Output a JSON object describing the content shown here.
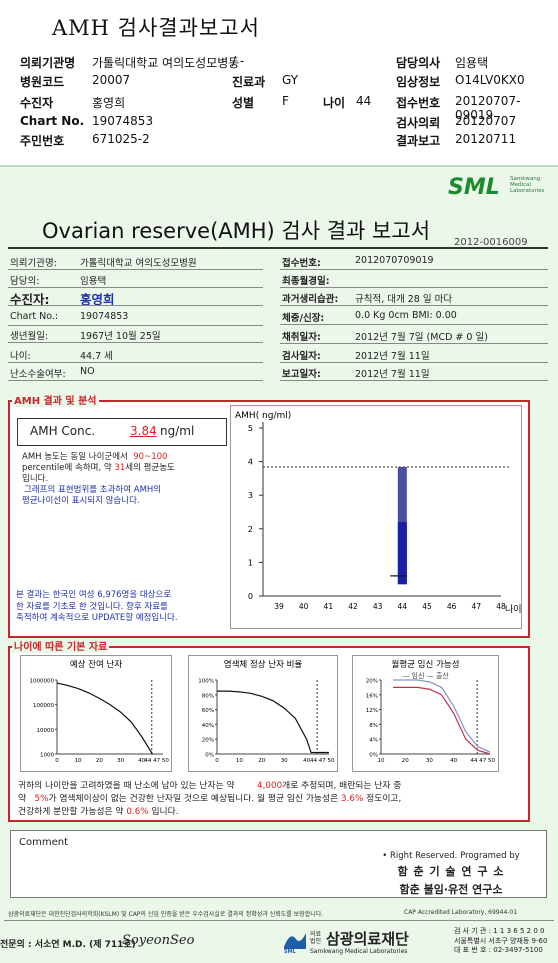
{
  "header": {
    "title": "AMH 검사결과보고서",
    "rows": [
      {
        "l1": "의뢰기관명",
        "v1": "가톨릭대학교 여의도성모병동",
        "l2": "/ -",
        "v2": "",
        "l3": "담당의사",
        "v3": "임용택"
      },
      {
        "l1": "병원코드",
        "v1": "20007",
        "l2": "진료과",
        "v2": "GY",
        "l3": "임상정보",
        "v3": "O14LV0KX0"
      },
      {
        "l1": "수진자",
        "v1": "홍영희",
        "l2": "성별",
        "v2": "F",
        "age_label": "나이",
        "age": "44",
        "l3": "접수번호",
        "v3": "20120707-09019"
      },
      {
        "l1": "Chart No.",
        "v1": "19074853",
        "l2": "",
        "v2": "",
        "l3": "검사의뢰",
        "v3": "20120707"
      },
      {
        "l1": "주민번호",
        "v1": "671025-2",
        "l2": "",
        "v2": "",
        "l3": "결과보고",
        "v3": "20120711"
      }
    ]
  },
  "brand": {
    "logo": "SML",
    "sub1": "Samkwang",
    "sub2": "Medical",
    "sub3": "Laboratories",
    "color": "#1a8c2e"
  },
  "report": {
    "title": "Ovarian reserve(AMH) 검사 결과 보고서",
    "doc_no": "2012-0016009",
    "left": [
      {
        "label": "의뢰기관명:",
        "value": "가톨릭대학교 여의도성모병원"
      },
      {
        "label": "담당의:",
        "value": "임용택"
      },
      {
        "label": "수진자:",
        "value": "홍영희"
      },
      {
        "label": "Chart No.:",
        "value": "19074853"
      },
      {
        "label": "생년월일:",
        "value": "1967년 10월 25일"
      },
      {
        "label": "나이:",
        "value": "44.7 세"
      },
      {
        "label": "난소수술여부:",
        "value": "NO"
      }
    ],
    "right": [
      {
        "label": "접수번호:",
        "value": "2012070709019"
      },
      {
        "label": "최종월경일:",
        "value": ""
      },
      {
        "label": "과거생리습관:",
        "value": "규칙적, 대개    28 일 마다"
      },
      {
        "label": "체중/신장:",
        "value": "0.0 Kg      0cm   BMI:   0.00"
      },
      {
        "label": "채취일자:",
        "value": "2012년 7월 7일     (MCD # 0 일)"
      },
      {
        "label": "검사일자:",
        "value": "2012년 7월 11일"
      },
      {
        "label": "보고일자:",
        "value": "2012년 7월 11일"
      }
    ]
  },
  "amh": {
    "section_title": "AMH 결과 및 분석",
    "conc_label": "AMH Conc.",
    "conc_value": "3.84",
    "conc_unit": "ng/ml",
    "p1a": "AMH 농도는 동일 나이군에서",
    "p1b": "90~100",
    "p1c": "percentile에 속하며, 약",
    "p1d": "31",
    "p1e": "세의 평균농도",
    "p1f": "입니다.",
    "p2a": "그래프의 표현범위를 초과하여 AMH의",
    "p2b": "평균나이선이 표시되지 않습니다.",
    "p3a": "본 결과는 한국인 여성 6,976명을 대상으로",
    "p3b": "한 자료를 기초로 한 것입니다. 향후 자료를",
    "p3c": "축적하여 계속적으로 UPDATE할 예정입니다."
  },
  "chart_data": [
    {
      "type": "bar",
      "ylabel": "AMH( ng/ml)",
      "xlabel": "나이",
      "categories": [
        "39",
        "40",
        "41",
        "42",
        "43",
        "44",
        "45",
        "46",
        "47",
        "48"
      ],
      "yticks": [
        "0",
        "1",
        "2",
        "3",
        "4",
        "5"
      ],
      "ylim": [
        0,
        5
      ],
      "reference_value": 3.84,
      "bar_category": "44",
      "bar_low": 0.35,
      "bar_high": 3.84,
      "mean_marker": 0.6
    },
    {
      "type": "line",
      "title": "예상 잔여 난자",
      "yticks": [
        "1000000",
        "100000",
        "10000",
        "1000"
      ],
      "xticks": [
        "0",
        "10",
        "20",
        "30",
        "40",
        "44 47 50"
      ],
      "ylim": [
        1000,
        1000000
      ],
      "log_scale": true,
      "x": [
        0,
        5,
        10,
        15,
        20,
        25,
        30,
        35,
        40,
        45
      ],
      "y": [
        750000,
        600000,
        450000,
        300000,
        180000,
        100000,
        50000,
        20000,
        5000,
        1000
      ]
    },
    {
      "type": "line",
      "title": "염색체 정상 난자 비율",
      "yticks": [
        "100%",
        "80%",
        "60%",
        "40%",
        "20%",
        "0%"
      ],
      "xticks": [
        "0",
        "10",
        "20",
        "30",
        "40",
        "44 47 50"
      ],
      "ylim": [
        0,
        100
      ],
      "x": [
        0,
        5,
        10,
        15,
        20,
        25,
        30,
        35,
        40,
        42,
        45,
        50
      ],
      "y": [
        85,
        85,
        84,
        82,
        78,
        72,
        62,
        48,
        20,
        2,
        2,
        2
      ]
    },
    {
      "type": "line",
      "title": "월평균 임신 가능성",
      "legend": [
        "임신",
        "출산"
      ],
      "yticks": [
        "20%",
        "16%",
        "12%",
        "8%",
        "4%",
        "0%"
      ],
      "xticks": [
        "10",
        "20",
        "30",
        "40",
        "44 47 50"
      ],
      "ylim": [
        0,
        20
      ],
      "series": [
        {
          "name": "임신",
          "x": [
            10,
            20,
            25,
            30,
            35,
            40,
            45,
            50
          ],
          "y": [
            20,
            20,
            19.5,
            18,
            13,
            6,
            2,
            0.5
          ],
          "color": "#8a90c8"
        },
        {
          "name": "출산",
          "x": [
            10,
            20,
            25,
            30,
            35,
            40,
            45,
            50
          ],
          "y": [
            18,
            18,
            17.5,
            16,
            11,
            4,
            1,
            0
          ],
          "color": "#c0324a"
        }
      ]
    }
  ],
  "basic": {
    "section_title": "나이에 따른 기본 자료",
    "s1a": "귀하의 나이만을 고려하였을 때 난소에 남아 있는 난자는 약",
    "s1b": "4,000",
    "s1c": "개로 추정되며, 배란되는 난자 중",
    "s2a": "약",
    "s2b": "5%",
    "s2c": "가 염색체이상이 없는 건강한 난자일 것으로 예상됩니다. 월 평균 임신 가능성은",
    "s2d": "3.6%",
    "s2e": "정도이고,",
    "s3a": "건강하게 분만할 가능성은 약",
    "s3b": "0.6%",
    "s3c": "입니다."
  },
  "comment": {
    "label": "Comment"
  },
  "rights": {
    "r1": "• Right Reserved. Programed by",
    "r2": "함 춘 기 술 연 구 소",
    "r3": "함춘 불임·유전 연구소"
  },
  "footer": {
    "f1": "삼광의료재단은 대한진단검사의학회(KSLM) 및 CAP의 신임 인증을 받은 우수검사실로 결과의 정확성과 신뢰도를 보장합니다.",
    "cap": "CAP  Accredited  Laboratory,  69944-01",
    "doctor": "전문의 : 서소연 M.D. (제 711호)",
    "signature": "SoyeonSeo",
    "org": "삼광의료재단",
    "org_prefix": "의료법인",
    "org_en": "Samkwang Medical Laboratories",
    "org_logo": "SML",
    "info1": "검 사 기 관 : 1 1 3 6 5 2 0 0",
    "info2": "서울특별시 서초구 양재동 9-60",
    "info3": "대 표 번 호 : 02-3497-5100"
  }
}
